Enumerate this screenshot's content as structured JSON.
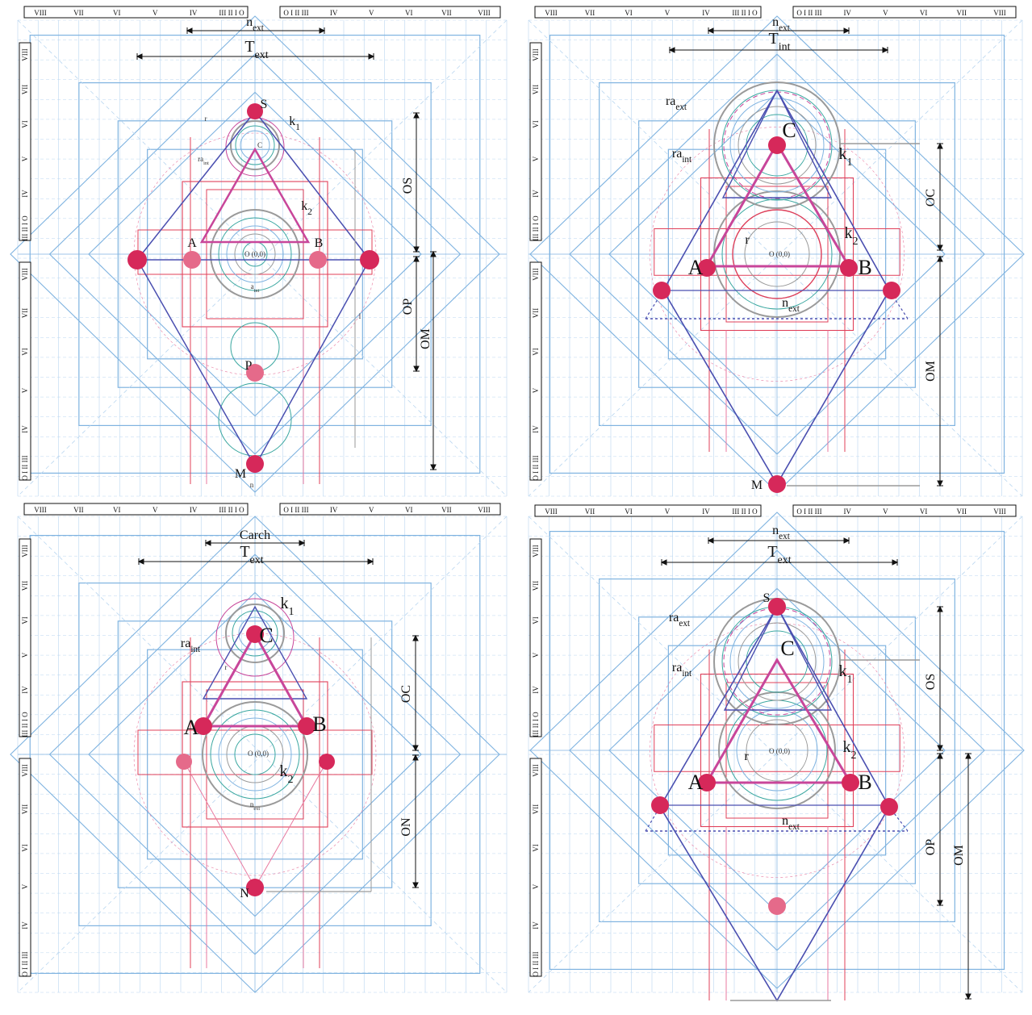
{
  "ruler_left_labels": [
    "VIII",
    "VII",
    "VI",
    "V",
    "IV",
    "III II I O"
  ],
  "ruler_right_labels": [
    "O I II III",
    "IV",
    "V",
    "VI",
    "VII",
    "VIII"
  ],
  "panels": [
    {
      "id": "top-left",
      "points": [
        "S",
        "C",
        "A",
        "B",
        "P",
        "M"
      ],
      "labels": {
        "next": "n",
        "next_sub": "ext",
        "text": "T",
        "text_sub": "ext",
        "k1": "k",
        "k1_sub": "1",
        "k2": "k",
        "k2_sub": "2",
        "os": "OS",
        "op": "OP",
        "om": "OM",
        "origin": "O (0,0)",
        "ri": "r",
        "raint": "ra",
        "raint_sub": "int",
        "aint": "a",
        "aint_sub": "int",
        "l": "l",
        "n": "n"
      }
    },
    {
      "id": "top-right",
      "points": [
        "C",
        "A",
        "B",
        "M"
      ],
      "labels": {
        "next": "n",
        "next_sub": "ext",
        "text": "T",
        "text_sub": "int",
        "k1": "k",
        "k1_sub": "1",
        "k2": "k",
        "k2_sub": "2",
        "oc": "OC",
        "om": "OM",
        "origin": "O (0,0)",
        "raext": "ra",
        "raext_sub": "ext",
        "raint": "ra",
        "raint_sub": "int",
        "next_bottom": "n",
        "next_bottom_sub": "ext",
        "ri": "r"
      }
    },
    {
      "id": "bottom-left",
      "points": [
        "C",
        "A",
        "B",
        "N"
      ],
      "labels": {
        "carch": "Carch",
        "text": "T",
        "text_sub": "ext",
        "k1": "k",
        "k1_sub": "1",
        "k2": "k",
        "k2_sub": "2",
        "oc": "OC",
        "on": "ON",
        "origin": "O (0,0)",
        "raint": "ra",
        "raint_sub": "int",
        "next_bottom": "n",
        "next_bottom_sub": "ext",
        "ri": "r"
      }
    },
    {
      "id": "bottom-right",
      "points": [
        "S",
        "C",
        "A",
        "B"
      ],
      "labels": {
        "next": "n",
        "next_sub": "ext",
        "text": "T",
        "text_sub": "ext",
        "k1": "k",
        "k1_sub": "1",
        "k2": "k",
        "k2_sub": "2",
        "os": "OS",
        "op": "OP",
        "om": "OM",
        "origin": "O (0,0)",
        "raext": "ra",
        "raext_sub": "ext",
        "raint": "ra",
        "raint_sub": "int",
        "next_bottom": "n",
        "next_bottom_sub": "ext",
        "ri": "r"
      }
    }
  ],
  "colors": {
    "grid_blue": "#7fb3e0",
    "grid_blue_light": "#b9d6f0",
    "red_line": "#e0405a",
    "pink_line": "#e87aa0",
    "magenta": "#c8469a",
    "navy": "#4a4fb0",
    "point_fill": "#d6285a",
    "point_fill_light": "#e56a8a",
    "gray_circle": "#9a9a9a",
    "teal": "#3aa7a0",
    "black": "#111111"
  }
}
